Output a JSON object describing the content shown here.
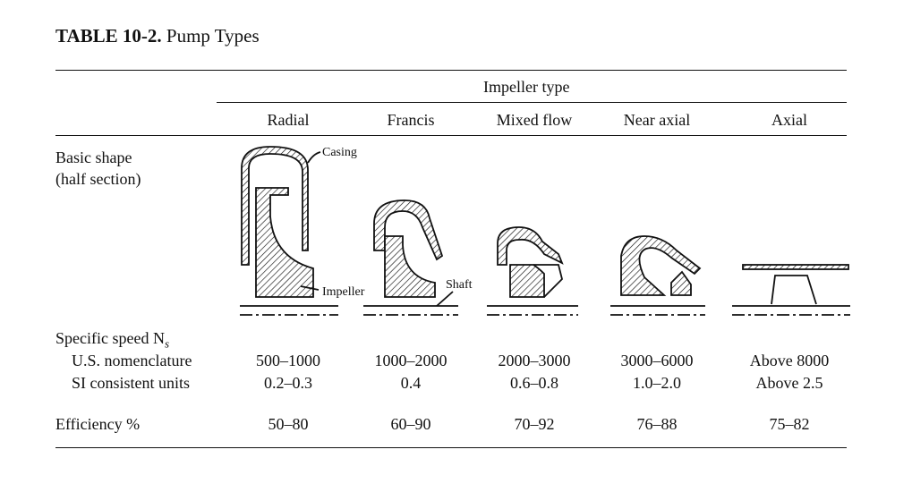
{
  "caption": {
    "number": "TABLE 10-2.",
    "title": "Pump Types"
  },
  "group_header": "Impeller type",
  "columns": [
    "Radial",
    "Francis",
    "Mixed flow",
    "Near axial",
    "Axial"
  ],
  "rows": {
    "shape_label_line1": "Basic shape",
    "shape_label_line2": "(half section)",
    "specific_speed_label": "Specific speed N",
    "specific_speed_sub": "s",
    "us_label": "U.S. nomenclature",
    "si_label": "SI consistent units",
    "efficiency_label": "Efficiency %",
    "us_values": [
      "500–1000",
      "1000–2000",
      "2000–3000",
      "3000–6000",
      "Above 8000"
    ],
    "si_values": [
      "0.2–0.3",
      "0.4",
      "0.6–0.8",
      "1.0–2.0",
      "Above 2.5"
    ],
    "efficiency_values": [
      "50–80",
      "60–90",
      "70–92",
      "76–88",
      "75–82"
    ]
  },
  "figure_labels": {
    "casing": "Casing",
    "impeller": "Impeller",
    "shaft": "Shaft"
  }
}
